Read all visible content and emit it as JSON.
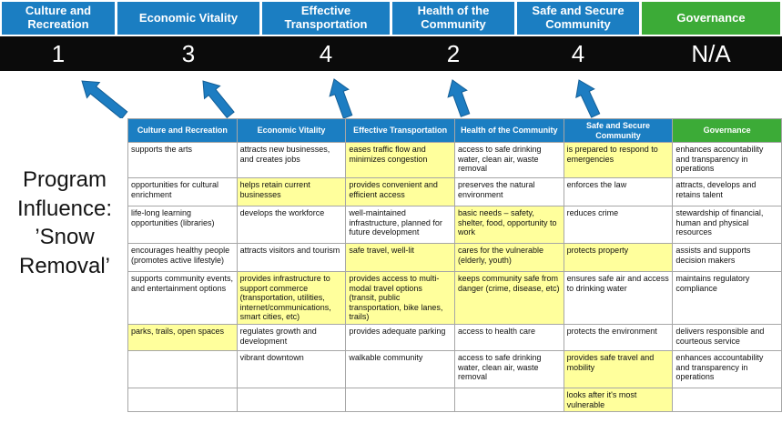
{
  "program_label": "Program Influence: ’Snow Removal’",
  "colors": {
    "pillar_blue": "#1b7ec2",
    "pillar_green": "#3cab37",
    "score_bar_black": "#0b0b0b",
    "highlight_yellow": "#ffff9c",
    "arrow_blue": "#1d7dc2"
  },
  "pillars": [
    {
      "label": "Culture and Recreation",
      "score": "1",
      "accent": "blue"
    },
    {
      "label": "Economic Vitality",
      "score": "3",
      "accent": "blue"
    },
    {
      "label": "Effective Transportation",
      "score": "4",
      "accent": "blue"
    },
    {
      "label": "Health of the Community",
      "score": "2",
      "accent": "blue"
    },
    {
      "label": "Safe and Secure Community",
      "score": "4",
      "accent": "blue"
    },
    {
      "label": "Governance",
      "score": "N/A",
      "accent": "green"
    }
  ],
  "matrix_rows": [
    [
      {
        "text": "supports the arts",
        "highlight": false
      },
      {
        "text": "attracts new businesses, and creates jobs",
        "highlight": false
      },
      {
        "text": "eases traffic flow and minimizes congestion",
        "highlight": true
      },
      {
        "text": "access to safe drinking water, clean air, waste removal",
        "highlight": false
      },
      {
        "text": "is prepared to respond to emergencies",
        "highlight": true
      },
      {
        "text": "enhances accountability and transparency in operations",
        "highlight": false
      }
    ],
    [
      {
        "text": "opportunities for cultural enrichment",
        "highlight": false
      },
      {
        "text": "helps retain current businesses",
        "highlight": true
      },
      {
        "text": "provides convenient and efficient access",
        "highlight": true
      },
      {
        "text": "preserves the natural environment",
        "highlight": false
      },
      {
        "text": "enforces the law",
        "highlight": false
      },
      {
        "text": "attracts, develops and retains talent",
        "highlight": false
      }
    ],
    [
      {
        "text": "life-long learning opportunities (libraries)",
        "highlight": false
      },
      {
        "text": "develops the workforce",
        "highlight": false
      },
      {
        "text": "well-maintained infrastructure, planned for future development",
        "highlight": false
      },
      {
        "text": "basic needs – safety, shelter, food, opportunity to work",
        "highlight": true
      },
      {
        "text": "reduces crime",
        "highlight": false
      },
      {
        "text": "stewardship of financial, human and physical resources",
        "highlight": false
      }
    ],
    [
      {
        "text": "encourages healthy people (promotes active lifestyle)",
        "highlight": false
      },
      {
        "text": "attracts visitors and tourism",
        "highlight": false
      },
      {
        "text": "safe travel, well-lit",
        "highlight": true
      },
      {
        "text": "cares for the vulnerable (elderly, youth)",
        "highlight": true
      },
      {
        "text": "protects property",
        "highlight": true
      },
      {
        "text": "assists and supports decision makers",
        "highlight": false
      }
    ],
    [
      {
        "text": "supports community events, and entertainment options",
        "highlight": false
      },
      {
        "text": "provides infrastructure to support commerce (transportation, utilities, internet/communications, smart cities, etc)",
        "highlight": true
      },
      {
        "text": "provides access to multi-modal travel options (transit, public transportation, bike lanes, trails)",
        "highlight": true
      },
      {
        "text": "keeps community safe from danger (crime, disease, etc)",
        "highlight": true
      },
      {
        "text": "ensures safe air and access to drinking water",
        "highlight": false
      },
      {
        "text": "maintains regulatory compliance",
        "highlight": false
      }
    ],
    [
      {
        "text": "parks, trails, open spaces",
        "highlight": true
      },
      {
        "text": "regulates growth and development",
        "highlight": false
      },
      {
        "text": "provides adequate parking",
        "highlight": false
      },
      {
        "text": "access to health care",
        "highlight": false
      },
      {
        "text": "protects the environment",
        "highlight": false
      },
      {
        "text": "delivers responsible and courteous service",
        "highlight": false
      }
    ],
    [
      {
        "text": "",
        "highlight": false
      },
      {
        "text": "vibrant downtown",
        "highlight": false
      },
      {
        "text": "walkable community",
        "highlight": false
      },
      {
        "text": "access to safe drinking water, clean air, waste removal",
        "highlight": false
      },
      {
        "text": "provides safe travel and mobility",
        "highlight": true
      },
      {
        "text": "enhances accountability and transparency in operations",
        "highlight": false
      }
    ],
    [
      {
        "text": "",
        "highlight": false
      },
      {
        "text": "",
        "highlight": false
      },
      {
        "text": "",
        "highlight": false
      },
      {
        "text": "",
        "highlight": false
      },
      {
        "text": "looks after it's most vulnerable",
        "highlight": true
      },
      {
        "text": "",
        "highlight": false
      }
    ]
  ]
}
